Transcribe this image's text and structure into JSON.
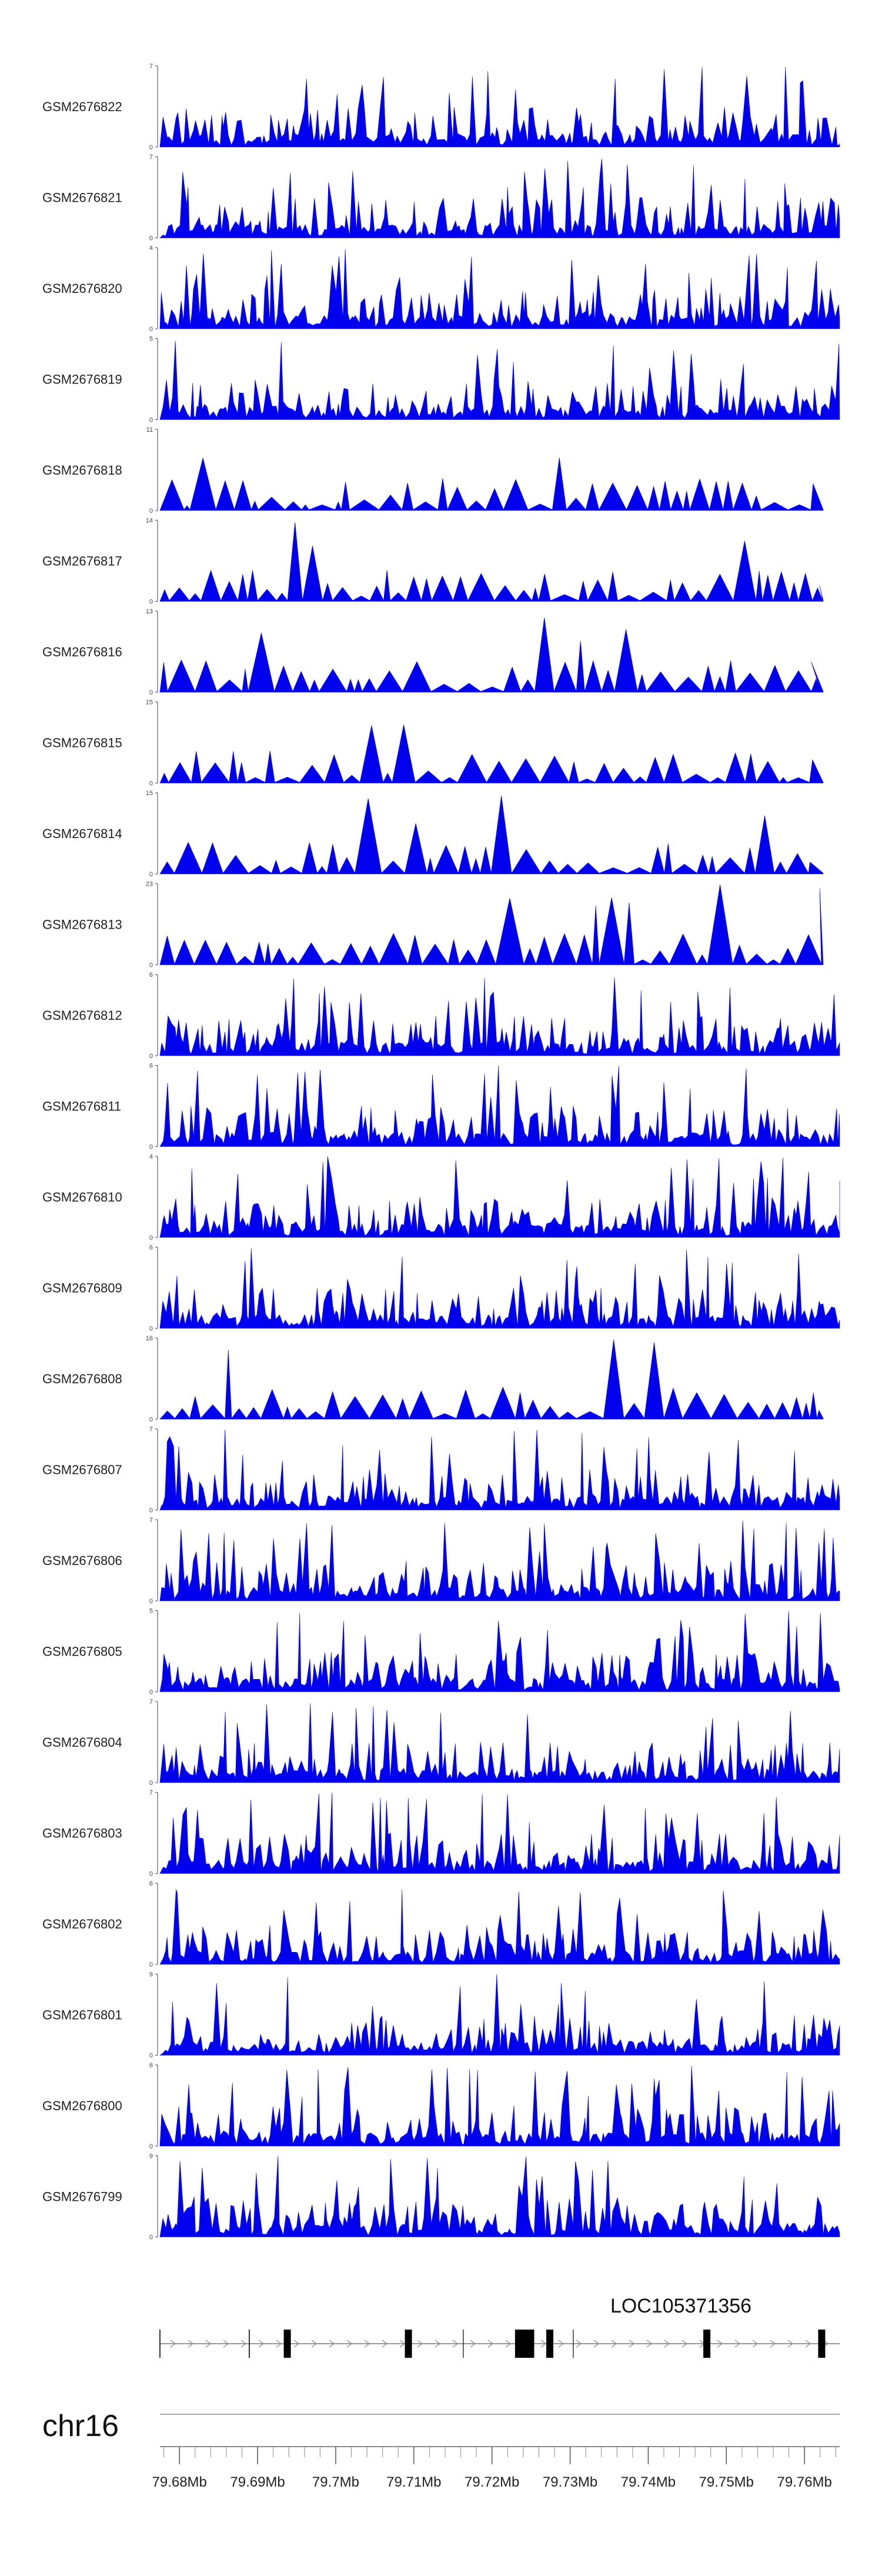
{
  "chart_data": {
    "type": "area",
    "colors": {
      "signal": "#0000ee",
      "axis": "#444444"
    },
    "tracks": [
      {
        "name": "GSM2676822",
        "ymax": 7
      },
      {
        "name": "GSM2676821",
        "ymax": 7
      },
      {
        "name": "GSM2676820",
        "ymax": 4
      },
      {
        "name": "GSM2676819",
        "ymax": 5
      },
      {
        "name": "GSM2676818",
        "ymax": 11
      },
      {
        "name": "GSM2676817",
        "ymax": 14
      },
      {
        "name": "GSM2676816",
        "ymax": 13
      },
      {
        "name": "GSM2676815",
        "ymax": 15
      },
      {
        "name": "GSM2676814",
        "ymax": 15
      },
      {
        "name": "GSM2676813",
        "ymax": 23
      },
      {
        "name": "GSM2676812",
        "ymax": 6
      },
      {
        "name": "GSM2676811",
        "ymax": 6
      },
      {
        "name": "GSM2676810",
        "ymax": 4
      },
      {
        "name": "GSM2676809",
        "ymax": 6
      },
      {
        "name": "GSM2676808",
        "ymax": 16
      },
      {
        "name": "GSM2676807",
        "ymax": 7
      },
      {
        "name": "GSM2676806",
        "ymax": 7
      },
      {
        "name": "GSM2676805",
        "ymax": 5
      },
      {
        "name": "GSM2676804",
        "ymax": 7
      },
      {
        "name": "GSM2676803",
        "ymax": 7
      },
      {
        "name": "GSM2676802",
        "ymax": 6
      },
      {
        "name": "GSM2676801",
        "ymax": 9
      },
      {
        "name": "GSM2676800",
        "ymax": 6
      },
      {
        "name": "GSM2676799",
        "ymax": 9
      }
    ],
    "ymin": 0,
    "gene": {
      "name": "LOC105371356",
      "exons_mb": [
        79.6938,
        79.7093,
        79.7237,
        79.7248,
        79.7274,
        79.7475,
        79.7622
      ]
    },
    "chromosome": "chr16",
    "xaxis": {
      "ticks_mb": [
        79.68,
        79.69,
        79.7,
        79.71,
        79.72,
        79.73,
        79.74,
        79.75,
        79.76
      ],
      "tick_labels": [
        "79.68Mb",
        "79.69Mb",
        "79.7Mb",
        "79.71Mb",
        "79.72Mb",
        "79.73Mb",
        "79.74Mb",
        "79.75Mb",
        "79.76Mb"
      ],
      "range_mb": [
        79.6775,
        79.7645
      ]
    }
  }
}
